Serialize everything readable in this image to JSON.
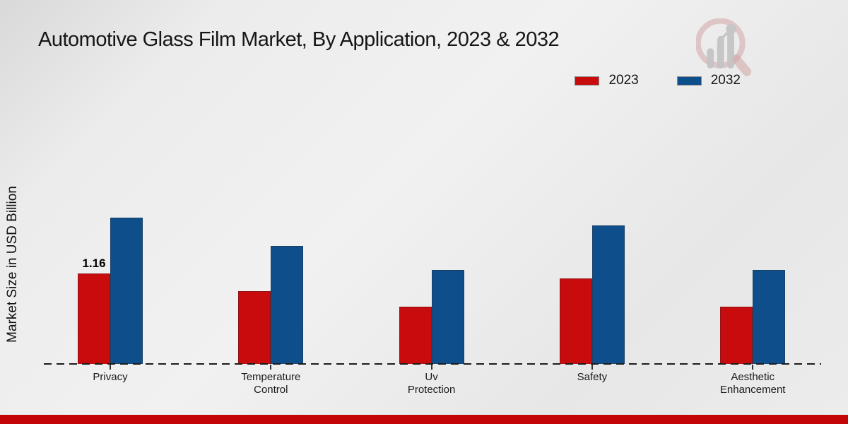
{
  "title": "Automotive Glass Film Market, By Application, 2023 & 2032",
  "ylabel": "Market Size in USD Billion",
  "colors": {
    "series_2023": "#c80b0d",
    "series_2032": "#0e4f8b",
    "footer_band": "#c40505",
    "axis_dash": "#1c1c1c"
  },
  "logo_icon": "magnifier-bar-chart-watermark",
  "chart_data": {
    "type": "bar",
    "title": "Automotive Glass Film Market, By Application, 2023 & 2032",
    "xlabel": "",
    "ylabel": "Market Size in USD Billion",
    "categories": [
      "Privacy",
      "Temperature Control",
      "Uv Protection",
      "Safety",
      "Aesthetic Enhancement"
    ],
    "series": [
      {
        "name": "2023",
        "color": "#c80b0d",
        "values": [
          1.16,
          0.93,
          0.73,
          1.1,
          0.73
        ]
      },
      {
        "name": "2032",
        "color": "#0e4f8b",
        "values": [
          1.88,
          1.51,
          1.21,
          1.78,
          1.21
        ]
      }
    ],
    "ylim": [
      0,
      2.1
    ],
    "grid": false,
    "axis_style": "dashed-baseline-only",
    "legend_position": "top-right",
    "legend_entries": [
      "2023",
      "2032"
    ],
    "data_labels": [
      {
        "series": "2023",
        "category": "Privacy",
        "text": "1.16"
      }
    ]
  }
}
